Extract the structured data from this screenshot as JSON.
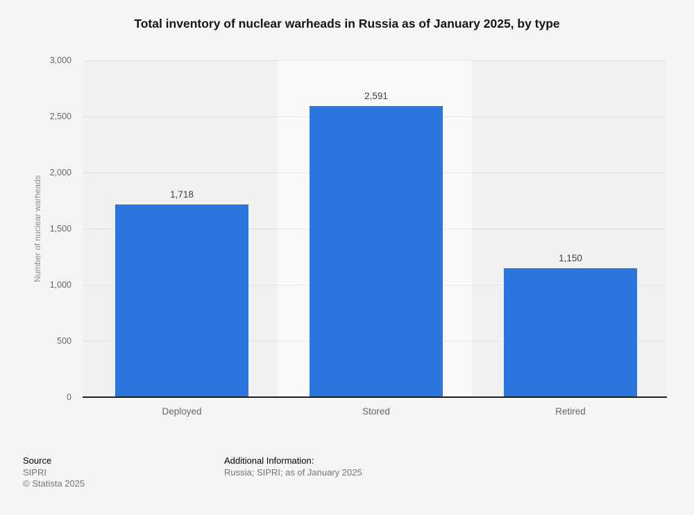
{
  "chart_data": {
    "type": "bar",
    "title": "Total inventory of nuclear warheads in Russia as of January 2025, by type",
    "categories": [
      "Deployed",
      "Stored",
      "Retired"
    ],
    "values": [
      1718,
      2591,
      1150
    ],
    "value_labels": [
      "1,718",
      "2,591",
      "1,150"
    ],
    "xlabel": "",
    "ylabel": "Number of nuclear warheads",
    "ylim": [
      0,
      3000
    ],
    "ytick_step": 500,
    "yticks": [
      "3,000",
      "2,500",
      "2,000",
      "1,500",
      "1,000",
      "500",
      "0"
    ],
    "grid": "horizontal-dotted",
    "legend": "none",
    "bar_color": "#2a76dd",
    "band_colors": [
      "#f1f1f1",
      "#fafafa",
      "#f1f1f1"
    ]
  },
  "footer": {
    "source_label": "Source",
    "source": "SIPRI",
    "copyright": "© Statista 2025",
    "additional_label": "Additional Information:",
    "additional_info": "Russia; SIPRI; as of January 2025"
  }
}
